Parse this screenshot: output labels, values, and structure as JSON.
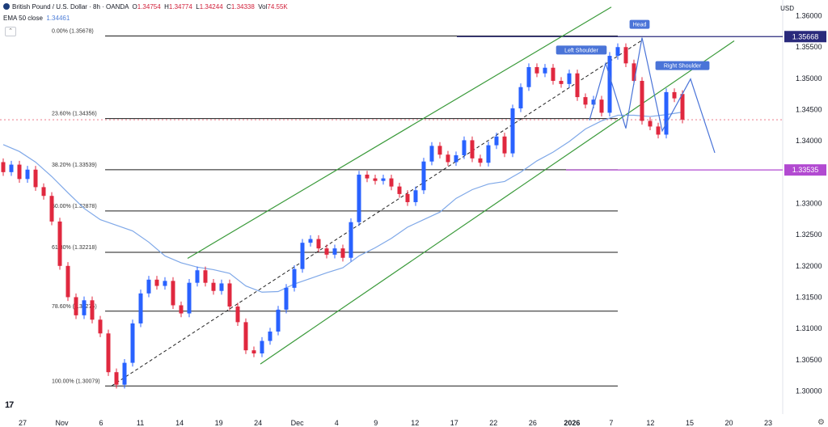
{
  "header": {
    "symbol_title": "British Pound / U.S. Dollar · 8h · OANDA",
    "ohlc": {
      "o_label": "O",
      "o": "1.34754",
      "h_label": "H",
      "h": "1.34774",
      "l_label": "L",
      "l": "1.34244",
      "c_label": "C",
      "c": "1.34338",
      "vol_label": "Vol",
      "vol": "74.55K"
    },
    "ema_label": "EMA 50 close",
    "ema_value": "1.34461",
    "collapse_icon": "chevron-up-icon"
  },
  "currency": "USD",
  "colors": {
    "up": "#2962ff",
    "down": "#e0283f",
    "ema": "#7fa8e8",
    "channel": "#3a9a3a",
    "fib": "#1b1b1b",
    "pattern": "#4a74d8",
    "resistance": "#2a2a7c",
    "support": "#b24ad1",
    "label_bg": "#4a74d8"
  },
  "chart_data": {
    "type": "candlestick",
    "title": "British Pound / U.S. Dollar · 8h · OANDA",
    "timeframe": "8h",
    "y_axis": {
      "ticks": [
        "1.36000",
        "1.35500",
        "1.35000",
        "1.34500",
        "1.34000",
        "1.33500",
        "1.33000",
        "1.32500",
        "1.32000",
        "1.31500",
        "1.31000",
        "1.30500",
        "1.30000"
      ],
      "range": [
        1.2985,
        1.3615
      ]
    },
    "x_axis": {
      "ticks": [
        "27",
        "Nov",
        "6",
        "11",
        "14",
        "19",
        "24",
        "Dec",
        "4",
        "9",
        "12",
        "17",
        "22",
        "26",
        "2026",
        "7",
        "12",
        "15",
        "20",
        "23"
      ],
      "bold_tick": "2026"
    },
    "series": [
      {
        "name": "EMA 50 close",
        "value": 1.34461,
        "points": [
          [
            0,
            1.3394
          ],
          [
            20,
            1.3383
          ],
          [
            40,
            1.3366
          ],
          [
            60,
            1.3343
          ],
          [
            80,
            1.3317
          ],
          [
            100,
            1.3292
          ],
          [
            120,
            1.3274
          ],
          [
            140,
            1.3265
          ],
          [
            160,
            1.3256
          ],
          [
            180,
            1.3238
          ],
          [
            200,
            1.3216
          ],
          [
            220,
            1.3205
          ],
          [
            240,
            1.3198
          ],
          [
            260,
            1.3194
          ],
          [
            280,
            1.3188
          ],
          [
            300,
            1.3168
          ],
          [
            320,
            1.3158
          ],
          [
            340,
            1.3159
          ],
          [
            360,
            1.3171
          ],
          [
            380,
            1.318
          ],
          [
            400,
            1.3189
          ],
          [
            420,
            1.3197
          ],
          [
            440,
            1.3216
          ],
          [
            460,
            1.3229
          ],
          [
            480,
            1.3244
          ],
          [
            500,
            1.3262
          ],
          [
            520,
            1.3274
          ],
          [
            540,
            1.3286
          ],
          [
            560,
            1.3308
          ],
          [
            580,
            1.3322
          ],
          [
            600,
            1.3331
          ],
          [
            620,
            1.3335
          ],
          [
            640,
            1.335
          ],
          [
            660,
            1.3368
          ],
          [
            680,
            1.3382
          ],
          [
            700,
            1.3399
          ],
          [
            720,
            1.3419
          ],
          [
            740,
            1.3432
          ],
          [
            760,
            1.3441
          ],
          [
            780,
            1.3441
          ],
          [
            800,
            1.3439
          ],
          [
            820,
            1.3442
          ],
          [
            840,
            1.3446
          ]
        ]
      }
    ],
    "candles": [
      [
        0,
        1.3366,
        1.335
      ],
      [
        10,
        1.335,
        1.3362
      ],
      [
        20,
        1.3362,
        1.3339
      ],
      [
        30,
        1.3339,
        1.3354
      ],
      [
        40,
        1.3354,
        1.3326
      ],
      [
        50,
        1.3326,
        1.3312
      ],
      [
        60,
        1.3312,
        1.3271
      ],
      [
        70,
        1.3271,
        1.32
      ],
      [
        80,
        1.32,
        1.315
      ],
      [
        90,
        1.315,
        1.3121
      ],
      [
        100,
        1.3121,
        1.3145
      ],
      [
        110,
        1.3145,
        1.3114
      ],
      [
        120,
        1.3114,
        1.3092
      ],
      [
        130,
        1.3092,
        1.303
      ],
      [
        140,
        1.303,
        1.301
      ],
      [
        150,
        1.301,
        1.3045
      ],
      [
        160,
        1.3045,
        1.3108
      ],
      [
        170,
        1.3108,
        1.3156
      ],
      [
        180,
        1.3156,
        1.3178
      ],
      [
        190,
        1.3178,
        1.3168
      ],
      [
        200,
        1.3168,
        1.3176
      ],
      [
        210,
        1.3176,
        1.3137
      ],
      [
        220,
        1.3137,
        1.3124
      ],
      [
        230,
        1.3124,
        1.3173
      ],
      [
        240,
        1.3173,
        1.3193
      ],
      [
        250,
        1.3193,
        1.3173
      ],
      [
        260,
        1.3173,
        1.316
      ],
      [
        270,
        1.316,
        1.3172
      ],
      [
        280,
        1.3172,
        1.3135
      ],
      [
        290,
        1.3135,
        1.311
      ],
      [
        300,
        1.311,
        1.3065
      ],
      [
        310,
        1.3065,
        1.306
      ],
      [
        320,
        1.306,
        1.308
      ],
      [
        330,
        1.308,
        1.3095
      ],
      [
        340,
        1.3095,
        1.313
      ],
      [
        350,
        1.313,
        1.3165
      ],
      [
        360,
        1.3165,
        1.3195
      ],
      [
        370,
        1.3195,
        1.3237
      ],
      [
        380,
        1.3237,
        1.3243
      ],
      [
        390,
        1.3243,
        1.3228
      ],
      [
        400,
        1.3228,
        1.3218
      ],
      [
        410,
        1.3218,
        1.3228
      ],
      [
        420,
        1.3228,
        1.3213
      ],
      [
        430,
        1.3213,
        1.327
      ],
      [
        440,
        1.327,
        1.3346
      ],
      [
        450,
        1.3346,
        1.334
      ],
      [
        460,
        1.334,
        1.3336
      ],
      [
        470,
        1.3336,
        1.334
      ],
      [
        480,
        1.334,
        1.3327
      ],
      [
        490,
        1.3327,
        1.3315
      ],
      [
        500,
        1.3315,
        1.3302
      ],
      [
        510,
        1.3302,
        1.3321
      ],
      [
        520,
        1.3321,
        1.3367
      ],
      [
        530,
        1.3367,
        1.3392
      ],
      [
        540,
        1.3392,
        1.3378
      ],
      [
        550,
        1.3378,
        1.3366
      ],
      [
        560,
        1.3366,
        1.3377
      ],
      [
        570,
        1.3377,
        1.3401
      ],
      [
        580,
        1.3401,
        1.3372
      ],
      [
        590,
        1.3372,
        1.3365
      ],
      [
        600,
        1.3365,
        1.3393
      ],
      [
        610,
        1.3393,
        1.3407
      ],
      [
        620,
        1.3407,
        1.338
      ],
      [
        630,
        1.338,
        1.3452
      ],
      [
        640,
        1.3452,
        1.3486
      ],
      [
        650,
        1.3486,
        1.3518
      ],
      [
        660,
        1.3518,
        1.3508
      ],
      [
        670,
        1.3508,
        1.3517
      ],
      [
        680,
        1.3517,
        1.3496
      ],
      [
        690,
        1.3496,
        1.3491
      ],
      [
        700,
        1.3491,
        1.3508
      ],
      [
        710,
        1.3508,
        1.347
      ],
      [
        720,
        1.347,
        1.3458
      ],
      [
        730,
        1.3458,
        1.3466
      ],
      [
        740,
        1.3466,
        1.3445
      ],
      [
        750,
        1.3445,
        1.3536
      ],
      [
        760,
        1.3536,
        1.355
      ],
      [
        770,
        1.355,
        1.3524
      ],
      [
        780,
        1.3524,
        1.3496
      ],
      [
        790,
        1.3496,
        1.3432
      ],
      [
        800,
        1.3432,
        1.3423
      ],
      [
        810,
        1.3423,
        1.341
      ],
      [
        820,
        1.341,
        1.3478
      ],
      [
        830,
        1.3478,
        1.3468
      ],
      [
        840,
        1.3475,
        1.3434
      ]
    ],
    "fibonacci": [
      {
        "label": "0.00% (1.35678)",
        "value": 1.35678
      },
      {
        "label": "23.60% (1.34356)",
        "value": 1.34356
      },
      {
        "label": "38.20% (1.33539)",
        "value": 1.33539
      },
      {
        "label": "50.00% (1.32878)",
        "value": 1.32878
      },
      {
        "label": "61.80% (1.32218)",
        "value": 1.32218
      },
      {
        "label": "78.60% (1.31276)",
        "value": 1.31276
      },
      {
        "label": "100.00% (1.30079)",
        "value": 1.30079
      }
    ],
    "horizontal_levels": [
      {
        "label": "1.35668",
        "value": 1.35668,
        "role": "resistance"
      },
      {
        "label": "1.33535",
        "value": 1.33535,
        "role": "support"
      }
    ],
    "current_price": 1.34338,
    "pattern": {
      "name": "Head and Shoulders",
      "labels": [
        "Left Shoulder",
        "Head",
        "Right Shoulder"
      ],
      "points": [
        [
          725,
          1.3433
        ],
        [
          745,
          1.3524
        ],
        [
          770,
          1.342
        ],
        [
          790,
          1.3565
        ],
        [
          815,
          1.3416
        ],
        [
          850,
          1.3499
        ],
        [
          880,
          1.3381
        ]
      ]
    },
    "channel": {
      "upper": [
        [
          228,
          1.3212
        ],
        [
          752,
          1.3614
        ]
      ],
      "lower": [
        [
          318,
          1.3043
        ],
        [
          904,
          1.356
        ]
      ],
      "mid": [
        [
          134,
          1.3008
        ],
        [
          790,
          1.3561
        ]
      ]
    }
  }
}
